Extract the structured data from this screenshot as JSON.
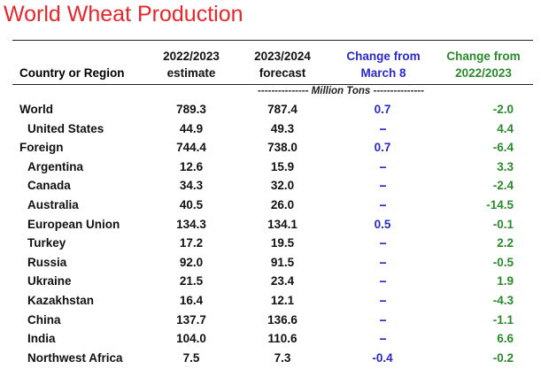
{
  "title": "World Wheat Production",
  "headers": {
    "country": "Country or Region",
    "col_a_1": "2022/2023",
    "col_a_2": "estimate",
    "col_b_1": "2023/2024",
    "col_b_2": "forecast",
    "col_c_1": "Change from",
    "col_c_2": "March 8",
    "col_d_1": "Change from",
    "col_d_2": "2022/2023"
  },
  "units": "--------------- Million Tons ---------------",
  "colors": {
    "title": "#e8262b",
    "change_march": "#2929c8",
    "change_year": "#2a8a2a"
  },
  "rows": [
    {
      "name": "World",
      "indent": false,
      "est": "789.3",
      "fcst": "787.4",
      "chg_march": "0.7",
      "chg_year": "-2.0"
    },
    {
      "name": "United States",
      "indent": true,
      "est": "44.9",
      "fcst": "49.3",
      "chg_march": "--",
      "chg_year": "4.4"
    },
    {
      "name": "Foreign",
      "indent": false,
      "est": "744.4",
      "fcst": "738.0",
      "chg_march": "0.7",
      "chg_year": "-6.4"
    },
    {
      "name": "Argentina",
      "indent": true,
      "est": "12.6",
      "fcst": "15.9",
      "chg_march": "--",
      "chg_year": "3.3"
    },
    {
      "name": "Canada",
      "indent": true,
      "est": "34.3",
      "fcst": "32.0",
      "chg_march": "--",
      "chg_year": "-2.4"
    },
    {
      "name": "Australia",
      "indent": true,
      "est": "40.5",
      "fcst": "26.0",
      "chg_march": "--",
      "chg_year": "-14.5"
    },
    {
      "name": "European Union",
      "indent": true,
      "est": "134.3",
      "fcst": "134.1",
      "chg_march": "0.5",
      "chg_year": "-0.1"
    },
    {
      "name": "Turkey",
      "indent": true,
      "est": "17.2",
      "fcst": "19.5",
      "chg_march": "--",
      "chg_year": "2.2"
    },
    {
      "name": "Russia",
      "indent": true,
      "est": "92.0",
      "fcst": "91.5",
      "chg_march": "--",
      "chg_year": "-0.5"
    },
    {
      "name": "Ukraine",
      "indent": true,
      "est": "21.5",
      "fcst": "23.4",
      "chg_march": "--",
      "chg_year": "1.9"
    },
    {
      "name": "Kazakhstan",
      "indent": true,
      "est": "16.4",
      "fcst": "12.1",
      "chg_march": "--",
      "chg_year": "-4.3"
    },
    {
      "name": "China",
      "indent": true,
      "est": "137.7",
      "fcst": "136.6",
      "chg_march": "--",
      "chg_year": "-1.1"
    },
    {
      "name": "India",
      "indent": true,
      "est": "104.0",
      "fcst": "110.6",
      "chg_march": "--",
      "chg_year": "6.6"
    },
    {
      "name": "Northwest Africa",
      "indent": true,
      "est": "7.5",
      "fcst": "7.3",
      "chg_march": "-0.4",
      "chg_year": "-0.2"
    }
  ]
}
